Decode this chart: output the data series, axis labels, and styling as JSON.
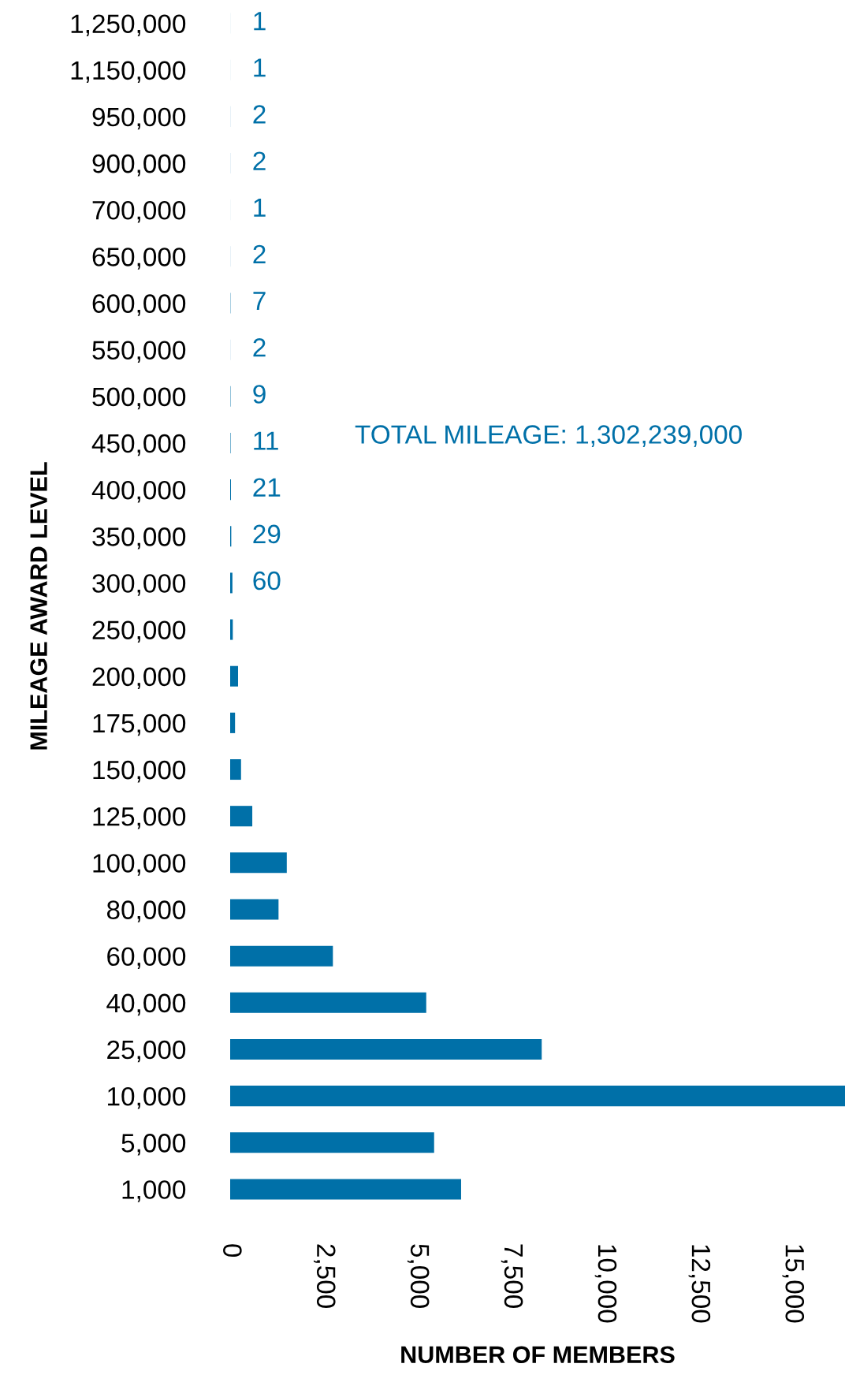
{
  "chart_data": {
    "type": "bar",
    "orientation": "horizontal",
    "xlabel": "NUMBER OF MEMBERS",
    "ylabel": "MILEAGE AWARD LEVEL",
    "categories": [
      "1,250,000",
      "1,150,000",
      "950,000",
      "900,000",
      "700,000",
      "650,000",
      "600,000",
      "550,000",
      "500,000",
      "450,000",
      "400,000",
      "350,000",
      "300,000",
      "250,000",
      "200,000",
      "175,000",
      "150,000",
      "125,000",
      "100,000",
      "80,000",
      "60,000",
      "40,000",
      "25,000",
      "10,000",
      "5,000",
      "1,000"
    ],
    "values": [
      1,
      1,
      2,
      2,
      1,
      2,
      7,
      2,
      9,
      11,
      21,
      29,
      60,
      70,
      210,
      130,
      290,
      590,
      1510,
      1290,
      2740,
      5230,
      8310,
      16400,
      5440,
      6160
    ],
    "value_labels": [
      "1",
      "1",
      "2",
      "2",
      "1",
      "2",
      "7",
      "2",
      "9",
      "11",
      "21",
      "29",
      "60",
      null,
      null,
      null,
      null,
      null,
      null,
      null,
      null,
      null,
      null,
      null,
      null,
      null
    ],
    "color": "#0070a8",
    "xlim": [
      0,
      16400
    ],
    "xticks": [
      {
        "value": 0,
        "label": "0"
      },
      {
        "value": 2500,
        "label": "2,500"
      },
      {
        "value": 5000,
        "label": "5,000"
      },
      {
        "value": 7500,
        "label": "7,500"
      },
      {
        "value": 10000,
        "label": "10,000"
      },
      {
        "value": 12500,
        "label": "12,500"
      },
      {
        "value": 15000,
        "label": "15,000"
      }
    ],
    "annotations": [
      "TOTAL MILEAGE: 1,302,239,000"
    ]
  }
}
